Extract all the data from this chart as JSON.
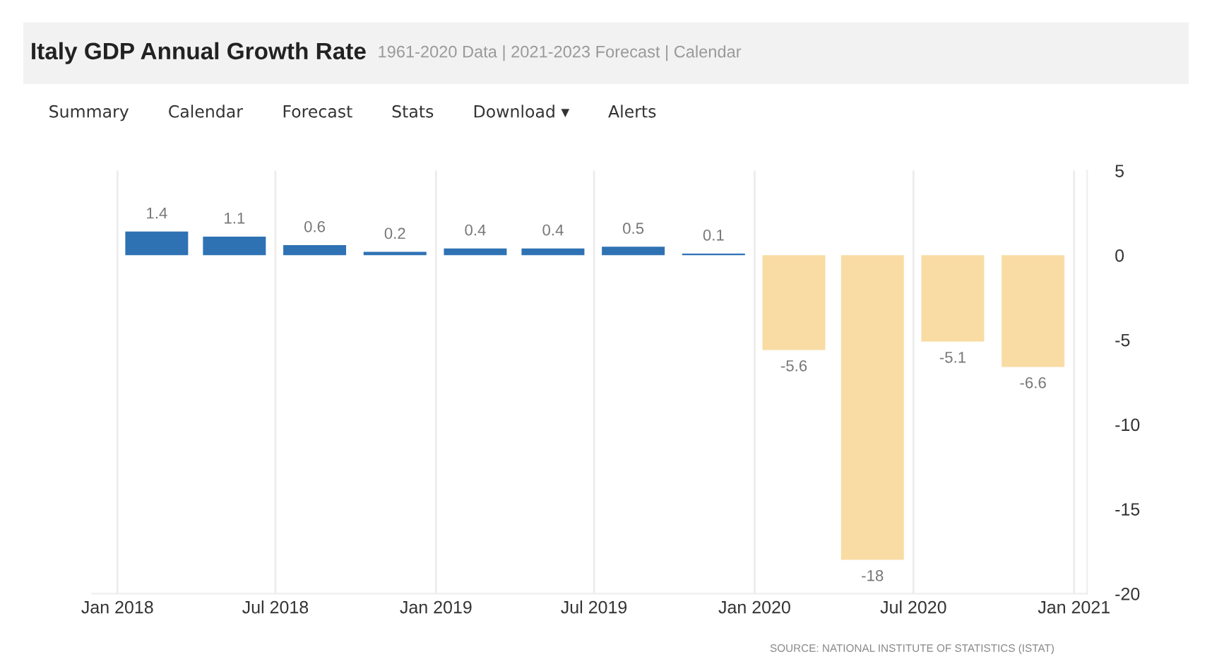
{
  "chart_data": {
    "type": "bar",
    "title": "Italy GDP Annual Growth Rate",
    "subtitle": "1961-2020 Data | 2021-2023 Forecast | Calendar",
    "annotations": [
      "Summary",
      "Calendar",
      "Forecast",
      "Stats",
      "Download ▾",
      "Alerts",
      "SOURCE: NATIONAL INSTITUTE OF STATISTICS (ISTAT)"
    ],
    "x": [
      "2018-02-15",
      "2018-05-15",
      "2018-08-15",
      "2018-11-15",
      "2019-02-15",
      "2019-05-15",
      "2019-08-15",
      "2019-11-15",
      "2020-02-15",
      "2020-05-15",
      "2020-08-15",
      "2020-11-15"
    ],
    "values": [
      1.4,
      1.1,
      0.6,
      0.2,
      0.4,
      0.4,
      0.5,
      0.1,
      -5.6,
      -18,
      -5.1,
      -6.6
    ],
    "colors": [
      "#2f72b4",
      "#2f72b4",
      "#2f72b4",
      "#2f72b4",
      "#2f72b4",
      "#2f72b4",
      "#2f72b4",
      "#2f72b4",
      "#f9dca4",
      "#f9dca4",
      "#f9dca4",
      "#f9dca4"
    ],
    "data_labels": true,
    "xlim": [
      "2017-12-03",
      "2021-01-16"
    ],
    "xticks": [
      {
        "value": "2018-01-01",
        "label": "Jan 2018"
      },
      {
        "value": "2018-07-01",
        "label": "Jul 2018"
      },
      {
        "value": "2019-01-01",
        "label": "Jan 2019"
      },
      {
        "value": "2019-07-01",
        "label": "Jul 2019"
      },
      {
        "value": "2020-01-01",
        "label": "Jan 2020"
      },
      {
        "value": "2020-07-01",
        "label": "Jul 2020"
      },
      {
        "value": "2021-01-01",
        "label": "Jan 2021"
      }
    ],
    "ylim": [
      -20,
      5
    ],
    "yticks": [
      5,
      0,
      -5,
      -10,
      -15,
      -20
    ],
    "grid": "x"
  }
}
